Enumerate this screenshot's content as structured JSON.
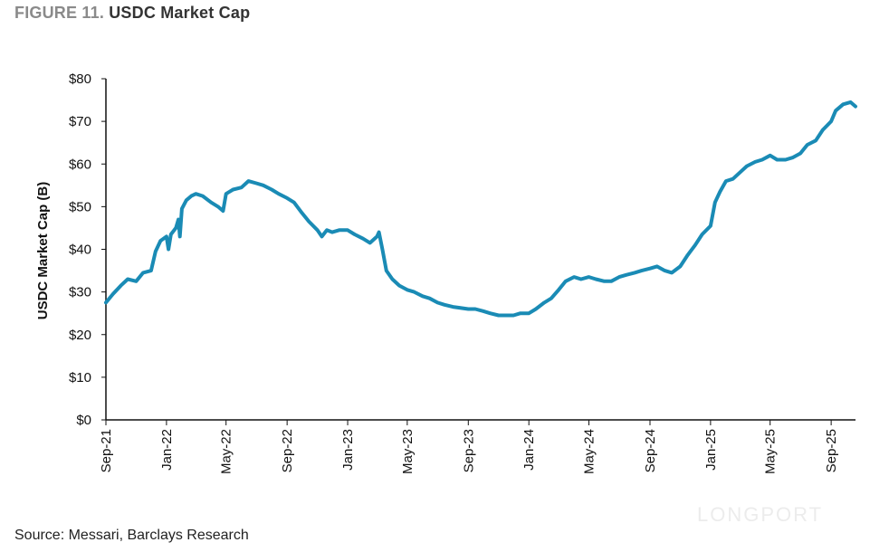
{
  "figure": {
    "number": "FIGURE 11.",
    "title": "USDC Market Cap"
  },
  "source": "Source: Messari, Barclays Research",
  "watermark": "LONGPORT",
  "colors": {
    "line": "#1a8bb5",
    "axis": "#111111"
  },
  "chart_data": {
    "type": "line",
    "ylabel": "USDC Market Cap (B)",
    "ylim": [
      0,
      80
    ],
    "yticks": [
      0,
      10,
      20,
      30,
      40,
      50,
      60,
      70,
      80
    ],
    "ytick_labels": [
      "$0",
      "$10",
      "$20",
      "$30",
      "$40",
      "$50",
      "$60",
      "$70",
      "$80"
    ],
    "xlim": [
      "2021-09-01",
      "2025-10-20"
    ],
    "xticks": [
      "2021-09-01",
      "2022-01-01",
      "2022-05-01",
      "2022-09-01",
      "2023-01-01",
      "2023-05-01",
      "2023-09-01",
      "2024-01-01",
      "2024-05-01",
      "2024-09-01",
      "2025-01-01",
      "2025-05-01",
      "2025-09-01"
    ],
    "xtick_labels": [
      "Sep-21",
      "Jan-22",
      "May-22",
      "Sep-22",
      "Jan-23",
      "May-23",
      "Sep-23",
      "Jan-24",
      "May-24",
      "Sep-24",
      "Jan-25",
      "May-25",
      "Sep-25"
    ],
    "grid": false,
    "series": [
      {
        "points": [
          [
            "2021-09-01",
            27.5
          ],
          [
            "2021-09-15",
            29.5
          ],
          [
            "2021-10-01",
            31.5
          ],
          [
            "2021-10-15",
            33.0
          ],
          [
            "2021-11-01",
            32.5
          ],
          [
            "2021-11-15",
            34.5
          ],
          [
            "2021-12-01",
            35.0
          ],
          [
            "2021-12-10",
            39.5
          ],
          [
            "2021-12-20",
            42.0
          ],
          [
            "2022-01-01",
            43.0
          ],
          [
            "2022-01-05",
            40.0
          ],
          [
            "2022-01-10",
            43.5
          ],
          [
            "2022-01-20",
            45.0
          ],
          [
            "2022-01-25",
            47.0
          ],
          [
            "2022-01-28",
            43.0
          ],
          [
            "2022-02-01",
            49.5
          ],
          [
            "2022-02-10",
            51.5
          ],
          [
            "2022-02-20",
            52.5
          ],
          [
            "2022-03-01",
            53.0
          ],
          [
            "2022-03-15",
            52.5
          ],
          [
            "2022-04-01",
            51.0
          ],
          [
            "2022-04-15",
            50.0
          ],
          [
            "2022-04-25",
            49.0
          ],
          [
            "2022-05-01",
            53.0
          ],
          [
            "2022-05-15",
            54.0
          ],
          [
            "2022-06-01",
            54.5
          ],
          [
            "2022-06-15",
            56.0
          ],
          [
            "2022-07-01",
            55.5
          ],
          [
            "2022-07-15",
            55.0
          ],
          [
            "2022-08-01",
            54.0
          ],
          [
            "2022-08-15",
            53.0
          ],
          [
            "2022-09-01",
            52.0
          ],
          [
            "2022-09-15",
            51.0
          ],
          [
            "2022-10-01",
            48.5
          ],
          [
            "2022-10-15",
            46.5
          ],
          [
            "2022-11-01",
            44.5
          ],
          [
            "2022-11-10",
            43.0
          ],
          [
            "2022-11-20",
            44.5
          ],
          [
            "2022-12-01",
            44.0
          ],
          [
            "2022-12-15",
            44.5
          ],
          [
            "2023-01-01",
            44.5
          ],
          [
            "2023-01-15",
            43.5
          ],
          [
            "2023-02-01",
            42.5
          ],
          [
            "2023-02-15",
            41.5
          ],
          [
            "2023-03-01",
            43.0
          ],
          [
            "2023-03-05",
            44.0
          ],
          [
            "2023-03-12",
            40.0
          ],
          [
            "2023-03-20",
            35.0
          ],
          [
            "2023-04-01",
            33.0
          ],
          [
            "2023-04-15",
            31.5
          ],
          [
            "2023-05-01",
            30.5
          ],
          [
            "2023-05-15",
            30.0
          ],
          [
            "2023-06-01",
            29.0
          ],
          [
            "2023-06-15",
            28.5
          ],
          [
            "2023-07-01",
            27.5
          ],
          [
            "2023-07-15",
            27.0
          ],
          [
            "2023-08-01",
            26.5
          ],
          [
            "2023-09-01",
            26.0
          ],
          [
            "2023-09-15",
            26.0
          ],
          [
            "2023-10-01",
            25.5
          ],
          [
            "2023-10-15",
            25.0
          ],
          [
            "2023-11-01",
            24.5
          ],
          [
            "2023-11-15",
            24.5
          ],
          [
            "2023-12-01",
            24.5
          ],
          [
            "2023-12-15",
            25.0
          ],
          [
            "2024-01-01",
            25.0
          ],
          [
            "2024-01-15",
            26.0
          ],
          [
            "2024-02-01",
            27.5
          ],
          [
            "2024-02-15",
            28.5
          ],
          [
            "2024-03-01",
            30.5
          ],
          [
            "2024-03-15",
            32.5
          ],
          [
            "2024-04-01",
            33.5
          ],
          [
            "2024-04-15",
            33.0
          ],
          [
            "2024-05-01",
            33.5
          ],
          [
            "2024-05-15",
            33.0
          ],
          [
            "2024-06-01",
            32.5
          ],
          [
            "2024-06-15",
            32.5
          ],
          [
            "2024-07-01",
            33.5
          ],
          [
            "2024-07-15",
            34.0
          ],
          [
            "2024-08-01",
            34.5
          ],
          [
            "2024-08-15",
            35.0
          ],
          [
            "2024-09-01",
            35.5
          ],
          [
            "2024-09-15",
            36.0
          ],
          [
            "2024-10-01",
            35.0
          ],
          [
            "2024-10-15",
            34.5
          ],
          [
            "2024-11-01",
            36.0
          ],
          [
            "2024-11-15",
            38.5
          ],
          [
            "2024-12-01",
            41.0
          ],
          [
            "2024-12-15",
            43.5
          ],
          [
            "2025-01-01",
            45.5
          ],
          [
            "2025-01-10",
            51.0
          ],
          [
            "2025-01-20",
            53.5
          ],
          [
            "2025-02-01",
            56.0
          ],
          [
            "2025-02-15",
            56.5
          ],
          [
            "2025-03-01",
            58.0
          ],
          [
            "2025-03-15",
            59.5
          ],
          [
            "2025-04-01",
            60.5
          ],
          [
            "2025-04-15",
            61.0
          ],
          [
            "2025-05-01",
            62.0
          ],
          [
            "2025-05-15",
            61.0
          ],
          [
            "2025-06-01",
            61.0
          ],
          [
            "2025-06-15",
            61.5
          ],
          [
            "2025-07-01",
            62.5
          ],
          [
            "2025-07-15",
            64.5
          ],
          [
            "2025-08-01",
            65.5
          ],
          [
            "2025-08-15",
            68.0
          ],
          [
            "2025-09-01",
            70.0
          ],
          [
            "2025-09-10",
            72.5
          ],
          [
            "2025-09-25",
            74.0
          ],
          [
            "2025-10-10",
            74.5
          ],
          [
            "2025-10-20",
            73.5
          ]
        ]
      }
    ]
  }
}
